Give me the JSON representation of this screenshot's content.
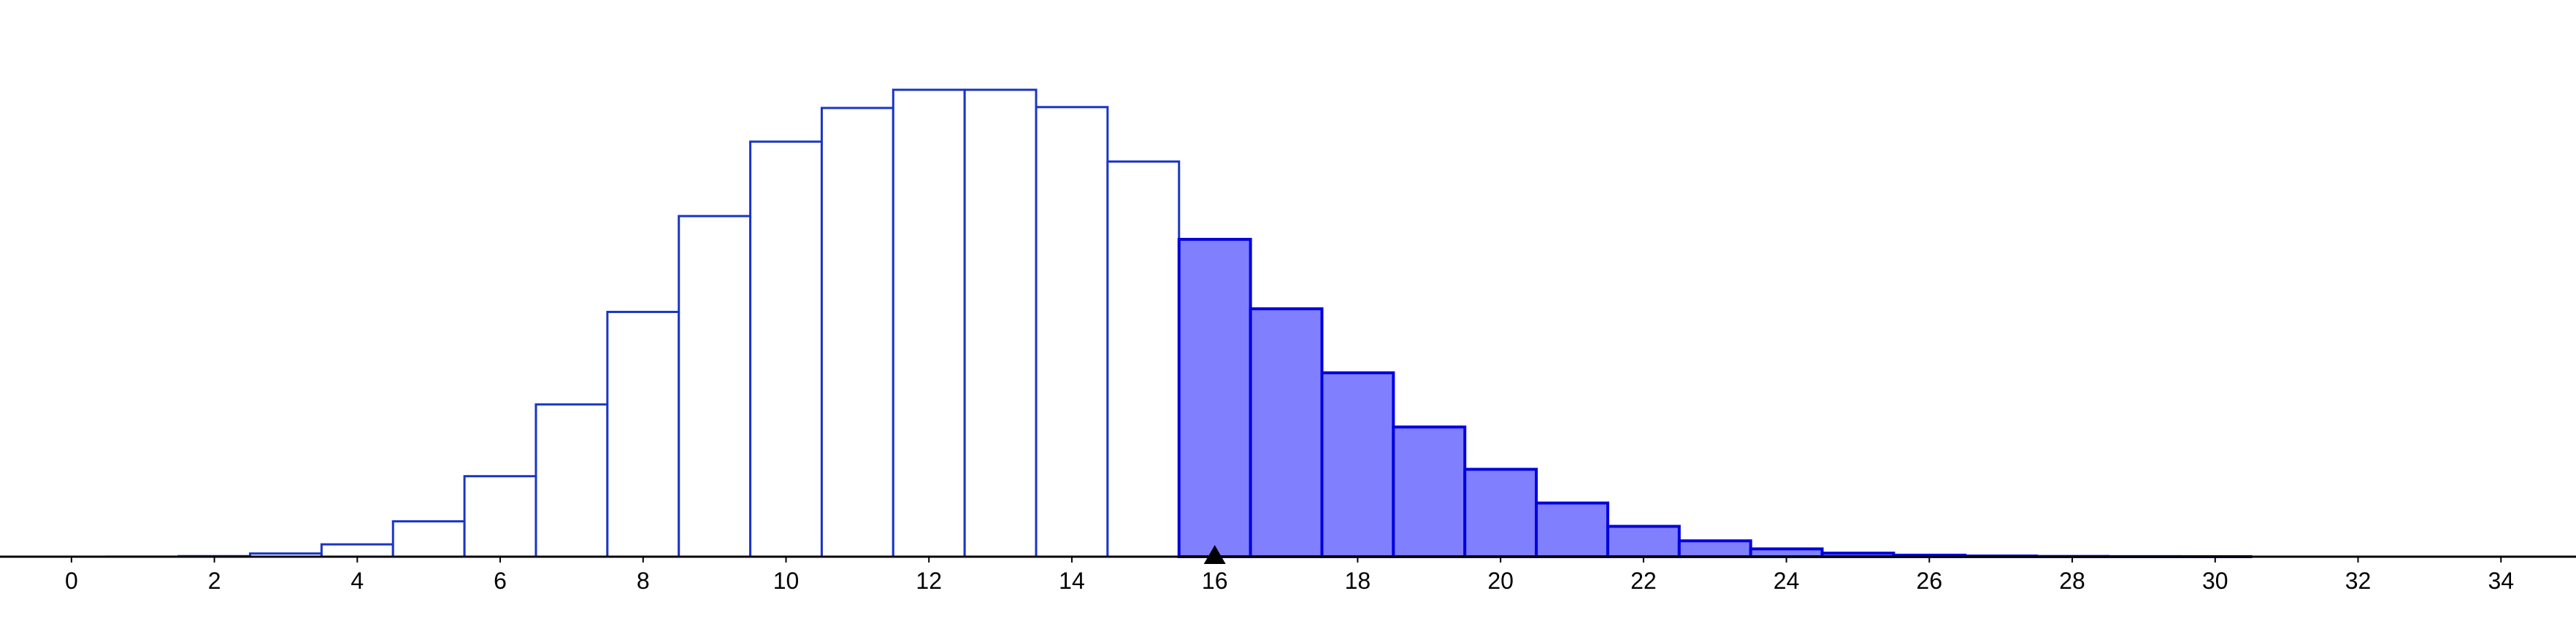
{
  "chart_data": {
    "type": "bar",
    "title": "",
    "xlabel": "",
    "ylabel": "",
    "x": [
      0,
      1,
      2,
      3,
      4,
      5,
      6,
      7,
      8,
      9,
      10,
      11,
      12,
      13,
      14,
      15,
      16,
      17,
      18,
      19,
      20,
      21,
      22,
      23,
      24,
      25,
      26,
      27,
      28,
      29,
      30,
      31,
      32,
      33,
      34,
      35
    ],
    "values": [
      0.0,
      2e-05,
      0.00018,
      0.00103,
      0.00397,
      0.01139,
      0.02594,
      0.04908,
      0.07888,
      0.10977,
      0.13376,
      0.14461,
      0.15047,
      0.15047,
      0.14489,
      0.12735,
      0.10227,
      0.07989,
      0.05925,
      0.04179,
      0.02816,
      0.01729,
      0.00978,
      0.00511,
      0.00251,
      0.00114,
      0.00049,
      0.00021,
      8e-05,
      3e-05,
      1e-05,
      0.0,
      0.0,
      0.0,
      0.0,
      0.0
    ],
    "shaded_from": 16,
    "marker_x": 16,
    "x_ticks": [
      "0",
      "2",
      "4",
      "6",
      "8",
      "10",
      "12",
      "14",
      "16",
      "18",
      "20",
      "22",
      "24",
      "26",
      "28",
      "30",
      "32",
      "34"
    ],
    "xlim": [
      -1,
      35.05
    ],
    "ylim": [
      0,
      0.17
    ],
    "grid": false,
    "colors": {
      "outline": "#1a36c4",
      "shaded_fill": "#8080ff",
      "shaded_outline": "#0000dd",
      "axis": "#000000",
      "marker": "#000000"
    }
  }
}
